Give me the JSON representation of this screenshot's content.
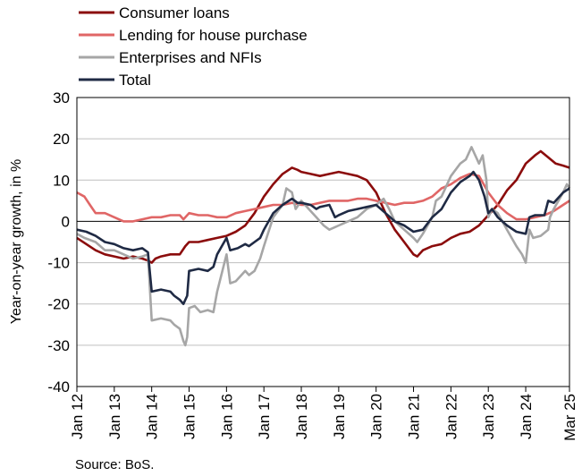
{
  "chart_data": {
    "type": "line",
    "ylabel": "Year-on-year growth, in %",
    "ylim": [
      -40,
      30
    ],
    "yticks": [
      30,
      20,
      10,
      0,
      -10,
      -20,
      -30,
      -40
    ],
    "xlim": [
      2012.0,
      2025.17
    ],
    "xticks": [
      {
        "label": "Jan 12",
        "x": 2012.0
      },
      {
        "label": "Jan 13",
        "x": 2013.0
      },
      {
        "label": "Jan 14",
        "x": 2014.0
      },
      {
        "label": "Jan 15",
        "x": 2015.0
      },
      {
        "label": "Jan 16",
        "x": 2016.0
      },
      {
        "label": "Jan 17",
        "x": 2017.0
      },
      {
        "label": "Jan 18",
        "x": 2018.0
      },
      {
        "label": "Jan 19",
        "x": 2019.0
      },
      {
        "label": "Jan 20",
        "x": 2020.0
      },
      {
        "label": "Jan 21",
        "x": 2021.0
      },
      {
        "label": "Jan 22",
        "x": 2022.0
      },
      {
        "label": "Jan 23",
        "x": 2023.0
      },
      {
        "label": "Jan 24",
        "x": 2024.0
      },
      {
        "label": "Mar 25",
        "x": 2025.17
      }
    ],
    "grid": true,
    "legend_position": "top",
    "source": "Source: BoS.",
    "series": [
      {
        "name": "Consumer loans",
        "color": "#8b0c0c",
        "points": [
          [
            2012.0,
            -4
          ],
          [
            2012.25,
            -5.5
          ],
          [
            2012.5,
            -7
          ],
          [
            2012.75,
            -8
          ],
          [
            2013.0,
            -8.5
          ],
          [
            2013.25,
            -9
          ],
          [
            2013.5,
            -8.5
          ],
          [
            2013.75,
            -9
          ],
          [
            2013.9,
            -9.5
          ],
          [
            2014.0,
            -10
          ],
          [
            2014.1,
            -9
          ],
          [
            2014.25,
            -8.5
          ],
          [
            2014.5,
            -8
          ],
          [
            2014.75,
            -8
          ],
          [
            2014.9,
            -6
          ],
          [
            2015.0,
            -5
          ],
          [
            2015.25,
            -5
          ],
          [
            2015.5,
            -4.5
          ],
          [
            2015.75,
            -4
          ],
          [
            2016.0,
            -3.5
          ],
          [
            2016.25,
            -2.5
          ],
          [
            2016.5,
            -1
          ],
          [
            2016.75,
            2
          ],
          [
            2017.0,
            6
          ],
          [
            2017.25,
            9
          ],
          [
            2017.5,
            11.5
          ],
          [
            2017.75,
            13
          ],
          [
            2017.9,
            12.5
          ],
          [
            2018.0,
            12
          ],
          [
            2018.25,
            11.5
          ],
          [
            2018.5,
            11
          ],
          [
            2018.75,
            11.5
          ],
          [
            2019.0,
            12
          ],
          [
            2019.25,
            11.5
          ],
          [
            2019.5,
            11
          ],
          [
            2019.75,
            10
          ],
          [
            2020.0,
            7
          ],
          [
            2020.25,
            2
          ],
          [
            2020.5,
            -2
          ],
          [
            2020.75,
            -5
          ],
          [
            2021.0,
            -8
          ],
          [
            2021.1,
            -8.5
          ],
          [
            2021.25,
            -7
          ],
          [
            2021.5,
            -6
          ],
          [
            2021.75,
            -5.5
          ],
          [
            2022.0,
            -4
          ],
          [
            2022.25,
            -3
          ],
          [
            2022.5,
            -2.5
          ],
          [
            2022.75,
            -1
          ],
          [
            2023.0,
            1.5
          ],
          [
            2023.25,
            4
          ],
          [
            2023.5,
            7.5
          ],
          [
            2023.75,
            10
          ],
          [
            2024.0,
            14
          ],
          [
            2024.25,
            16
          ],
          [
            2024.4,
            17
          ],
          [
            2024.6,
            15.5
          ],
          [
            2024.8,
            14
          ],
          [
            2025.0,
            13.5
          ],
          [
            2025.17,
            13
          ]
        ]
      },
      {
        "name": "Lending for house purchase",
        "color": "#e06666",
        "points": [
          [
            2012.0,
            7
          ],
          [
            2012.2,
            6
          ],
          [
            2012.35,
            4
          ],
          [
            2012.5,
            2
          ],
          [
            2012.75,
            2
          ],
          [
            2013.0,
            1
          ],
          [
            2013.25,
            0
          ],
          [
            2013.5,
            0
          ],
          [
            2013.75,
            0.5
          ],
          [
            2014.0,
            1
          ],
          [
            2014.25,
            1
          ],
          [
            2014.5,
            1.5
          ],
          [
            2014.75,
            1.5
          ],
          [
            2014.85,
            0.5
          ],
          [
            2015.0,
            2
          ],
          [
            2015.25,
            1.5
          ],
          [
            2015.5,
            1.5
          ],
          [
            2015.75,
            1
          ],
          [
            2016.0,
            1
          ],
          [
            2016.25,
            2
          ],
          [
            2016.5,
            2.5
          ],
          [
            2016.75,
            3
          ],
          [
            2017.0,
            3.5
          ],
          [
            2017.25,
            4
          ],
          [
            2017.5,
            4
          ],
          [
            2017.75,
            4.5
          ],
          [
            2018.0,
            4
          ],
          [
            2018.25,
            4
          ],
          [
            2018.5,
            4.5
          ],
          [
            2018.75,
            5
          ],
          [
            2019.0,
            5
          ],
          [
            2019.25,
            5
          ],
          [
            2019.5,
            5.5
          ],
          [
            2019.75,
            5.5
          ],
          [
            2020.0,
            5
          ],
          [
            2020.25,
            4.5
          ],
          [
            2020.5,
            4
          ],
          [
            2020.75,
            4.5
          ],
          [
            2021.0,
            4.5
          ],
          [
            2021.25,
            5
          ],
          [
            2021.5,
            6
          ],
          [
            2021.75,
            8
          ],
          [
            2022.0,
            9
          ],
          [
            2022.25,
            10.5
          ],
          [
            2022.5,
            11.5
          ],
          [
            2022.75,
            11
          ],
          [
            2023.0,
            7
          ],
          [
            2023.25,
            4
          ],
          [
            2023.5,
            2
          ],
          [
            2023.75,
            0.5
          ],
          [
            2024.0,
            0.5
          ],
          [
            2024.25,
            1
          ],
          [
            2024.5,
            1.5
          ],
          [
            2024.75,
            2.5
          ],
          [
            2025.0,
            4
          ],
          [
            2025.17,
            5
          ]
        ]
      },
      {
        "name": "Enterprises and NFIs",
        "color": "#a6a6a6",
        "points": [
          [
            2012.0,
            -3
          ],
          [
            2012.2,
            -4
          ],
          [
            2012.5,
            -5
          ],
          [
            2012.75,
            -7
          ],
          [
            2013.0,
            -7
          ],
          [
            2013.25,
            -8
          ],
          [
            2013.5,
            -9
          ],
          [
            2013.75,
            -8.5
          ],
          [
            2013.9,
            -8
          ],
          [
            2014.0,
            -24
          ],
          [
            2014.25,
            -23.5
          ],
          [
            2014.5,
            -24
          ],
          [
            2014.6,
            -25
          ],
          [
            2014.75,
            -26
          ],
          [
            2014.85,
            -29
          ],
          [
            2014.9,
            -30
          ],
          [
            2014.95,
            -28
          ],
          [
            2015.0,
            -21
          ],
          [
            2015.15,
            -20.5
          ],
          [
            2015.3,
            -22
          ],
          [
            2015.5,
            -21.5
          ],
          [
            2015.65,
            -22
          ],
          [
            2015.75,
            -17
          ],
          [
            2016.0,
            -8
          ],
          [
            2016.1,
            -15
          ],
          [
            2016.25,
            -14.5
          ],
          [
            2016.4,
            -13
          ],
          [
            2016.5,
            -12
          ],
          [
            2016.6,
            -13
          ],
          [
            2016.75,
            -12
          ],
          [
            2016.9,
            -9
          ],
          [
            2017.0,
            -6
          ],
          [
            2017.25,
            1
          ],
          [
            2017.5,
            4
          ],
          [
            2017.6,
            8
          ],
          [
            2017.75,
            7
          ],
          [
            2017.85,
            3
          ],
          [
            2018.0,
            5
          ],
          [
            2018.2,
            3
          ],
          [
            2018.4,
            1
          ],
          [
            2018.5,
            0
          ],
          [
            2018.6,
            -1
          ],
          [
            2018.75,
            -2
          ],
          [
            2019.0,
            -1
          ],
          [
            2019.25,
            0
          ],
          [
            2019.5,
            1
          ],
          [
            2019.75,
            3
          ],
          [
            2020.0,
            4
          ],
          [
            2020.2,
            5.5
          ],
          [
            2020.35,
            3
          ],
          [
            2020.5,
            0
          ],
          [
            2020.75,
            -2
          ],
          [
            2021.0,
            -4
          ],
          [
            2021.1,
            -5
          ],
          [
            2021.25,
            -3
          ],
          [
            2021.5,
            1
          ],
          [
            2021.6,
            5
          ],
          [
            2021.75,
            6
          ],
          [
            2022.0,
            11
          ],
          [
            2022.25,
            14
          ],
          [
            2022.4,
            15
          ],
          [
            2022.55,
            18
          ],
          [
            2022.6,
            17
          ],
          [
            2022.75,
            14
          ],
          [
            2022.85,
            16
          ],
          [
            2022.95,
            10
          ],
          [
            2023.0,
            1
          ],
          [
            2023.1,
            3
          ],
          [
            2023.25,
            2
          ],
          [
            2023.5,
            -2
          ],
          [
            2023.75,
            -6
          ],
          [
            2023.9,
            -8
          ],
          [
            2024.0,
            -10
          ],
          [
            2024.1,
            -2
          ],
          [
            2024.2,
            -4
          ],
          [
            2024.4,
            -3.5
          ],
          [
            2024.6,
            -2
          ],
          [
            2024.65,
            1
          ],
          [
            2024.75,
            3
          ],
          [
            2025.0,
            7
          ],
          [
            2025.1,
            9
          ],
          [
            2025.17,
            8
          ]
        ]
      },
      {
        "name": "Total",
        "color": "#1f2a44",
        "points": [
          [
            2012.0,
            -2
          ],
          [
            2012.25,
            -2.5
          ],
          [
            2012.5,
            -3.5
          ],
          [
            2012.75,
            -5
          ],
          [
            2013.0,
            -5.5
          ],
          [
            2013.25,
            -6.5
          ],
          [
            2013.5,
            -7
          ],
          [
            2013.75,
            -6.5
          ],
          [
            2013.9,
            -7.5
          ],
          [
            2014.0,
            -17
          ],
          [
            2014.25,
            -16.5
          ],
          [
            2014.5,
            -17
          ],
          [
            2014.6,
            -18
          ],
          [
            2014.75,
            -19
          ],
          [
            2014.85,
            -20
          ],
          [
            2014.95,
            -18
          ],
          [
            2015.0,
            -12
          ],
          [
            2015.25,
            -11.5
          ],
          [
            2015.5,
            -12
          ],
          [
            2015.65,
            -11
          ],
          [
            2015.75,
            -8
          ],
          [
            2016.0,
            -4
          ],
          [
            2016.1,
            -7
          ],
          [
            2016.3,
            -6.5
          ],
          [
            2016.5,
            -5.5
          ],
          [
            2016.6,
            -6
          ],
          [
            2016.75,
            -5
          ],
          [
            2016.9,
            -4
          ],
          [
            2017.0,
            -2
          ],
          [
            2017.25,
            2
          ],
          [
            2017.5,
            4
          ],
          [
            2017.75,
            5.5
          ],
          [
            2017.9,
            4.5
          ],
          [
            2018.0,
            4.5
          ],
          [
            2018.25,
            4
          ],
          [
            2018.4,
            3
          ],
          [
            2018.5,
            3.5
          ],
          [
            2018.75,
            4
          ],
          [
            2018.9,
            1
          ],
          [
            2019.0,
            1.5
          ],
          [
            2019.25,
            2.5
          ],
          [
            2019.5,
            3
          ],
          [
            2019.75,
            3.5
          ],
          [
            2020.0,
            4
          ],
          [
            2020.25,
            2
          ],
          [
            2020.5,
            0
          ],
          [
            2020.75,
            -1
          ],
          [
            2021.0,
            -2.5
          ],
          [
            2021.25,
            -2
          ],
          [
            2021.5,
            1
          ],
          [
            2021.75,
            3
          ],
          [
            2022.0,
            7
          ],
          [
            2022.25,
            9.5
          ],
          [
            2022.5,
            11
          ],
          [
            2022.6,
            12
          ],
          [
            2022.75,
            10
          ],
          [
            2022.9,
            6
          ],
          [
            2023.0,
            2
          ],
          [
            2023.1,
            3
          ],
          [
            2023.25,
            1
          ],
          [
            2023.5,
            -1
          ],
          [
            2023.75,
            -2.5
          ],
          [
            2024.0,
            -3
          ],
          [
            2024.1,
            1
          ],
          [
            2024.25,
            1.5
          ],
          [
            2024.5,
            1.5
          ],
          [
            2024.6,
            5
          ],
          [
            2024.75,
            4.5
          ],
          [
            2025.0,
            7
          ],
          [
            2025.17,
            8
          ]
        ]
      }
    ]
  }
}
